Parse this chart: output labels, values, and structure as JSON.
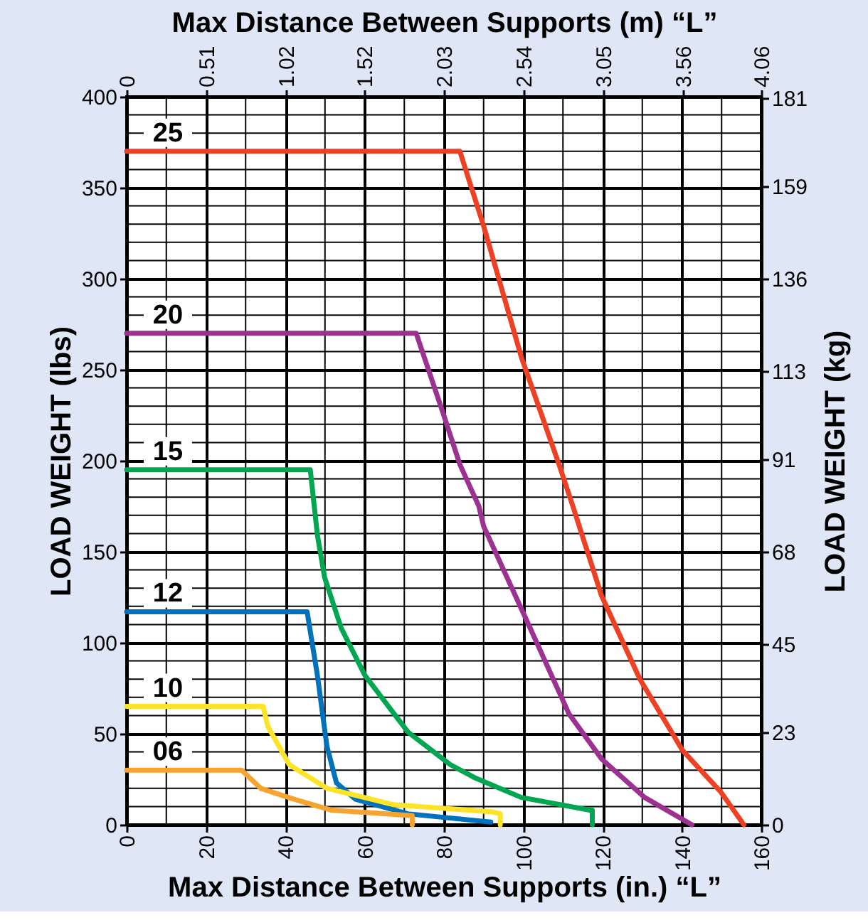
{
  "chart_data": {
    "type": "line",
    "xlabel": "Max Distance Between Supports (in.) “L”",
    "x2label": "Max Distance Between Supports (m) “L”",
    "ylabel": "LOAD WEIGHT (lbs)",
    "y2label": "LOAD WEIGHT (kg)",
    "xlim": [
      0,
      160
    ],
    "xticks": [
      0,
      20,
      40,
      60,
      80,
      100,
      120,
      140,
      160
    ],
    "x2lim": [
      0,
      4.06
    ],
    "x2ticks": [
      0,
      0.51,
      1.02,
      1.52,
      2.03,
      2.54,
      3.05,
      3.56,
      4.06
    ],
    "ylim": [
      0,
      400
    ],
    "yticks": [
      0,
      50,
      100,
      150,
      200,
      250,
      300,
      350,
      400
    ],
    "y2lim": [
      0,
      181.4
    ],
    "y2ticks": [
      0,
      23,
      45,
      68,
      91,
      113,
      136,
      159,
      181
    ],
    "grid": true,
    "marker": "none",
    "line_style": "solid",
    "series": [
      {
        "name": "25",
        "color": "#ee4124",
        "x": [
          0,
          84,
          90,
          99.5,
          109,
          112.5,
          119.7,
          129.4,
          140.1,
          149.8,
          155.6
        ],
        "values": [
          370,
          370,
          329,
          257,
          198,
          175,
          126,
          80,
          41,
          18,
          0
        ]
      },
      {
        "name": "20",
        "color": "#9c3192",
        "x": [
          0,
          73,
          79.8,
          84,
          88.8,
          90,
          100.7,
          111.5,
          119.8,
          130.6,
          142.5
        ],
        "values": [
          270,
          270,
          226,
          198,
          175,
          164,
          113,
          61,
          36,
          15,
          0
        ]
      },
      {
        "name": "15",
        "color": "#00a650",
        "x": [
          0,
          46.3,
          48.1,
          49.9,
          54.1,
          60.1,
          70.9,
          81.6,
          87.6,
          99.5,
          116.8,
          117.4,
          117.4
        ],
        "values": [
          195,
          195,
          159,
          136,
          108,
          82,
          51,
          33,
          26,
          15,
          8,
          8,
          0
        ]
      },
      {
        "name": "12",
        "color": "#0072bc",
        "x": [
          0,
          45.5,
          48.1,
          50.5,
          52.9,
          57.7,
          70.9,
          91.8
        ],
        "values": [
          117,
          117,
          82,
          43,
          23,
          14,
          6,
          1.5
        ]
      },
      {
        "name": "10",
        "color": "#fde428",
        "x": [
          0,
          34.4,
          35.6,
          41,
          50.5,
          67.3,
          92.4,
          94.2,
          94.2
        ],
        "values": [
          65,
          65,
          54,
          33,
          20,
          11,
          7,
          6,
          0
        ]
      },
      {
        "name": "06",
        "color": "#f6a330",
        "x": [
          0,
          29,
          33.8,
          42.2,
          51.7,
          72,
          72
        ],
        "values": [
          30,
          30,
          20,
          14,
          8,
          5,
          0
        ]
      }
    ]
  }
}
